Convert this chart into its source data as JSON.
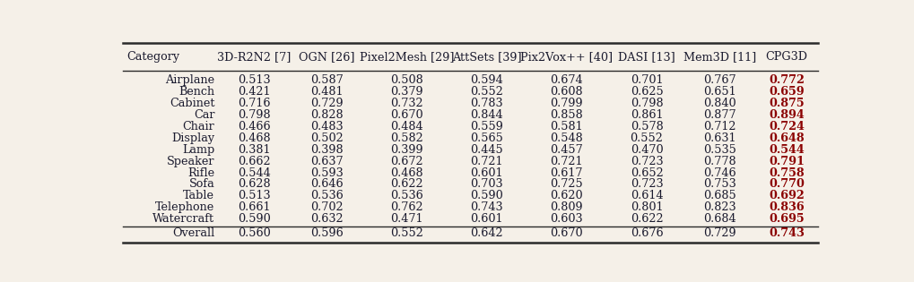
{
  "columns": [
    "Category",
    "3D-R2N2 [7]",
    "OGN [26]",
    "Pixel2Mesh [29]",
    "AttSets [39]",
    "Pix2Vox++ [40]",
    "DASI [13]",
    "Mem3D [11]",
    "CPG3D"
  ],
  "rows": [
    [
      "Airplane",
      "0.513",
      "0.587",
      "0.508",
      "0.594",
      "0.674",
      "0.701",
      "0.767",
      "0.772"
    ],
    [
      "Bench",
      "0.421",
      "0.481",
      "0.379",
      "0.552",
      "0.608",
      "0.625",
      "0.651",
      "0.659"
    ],
    [
      "Cabinet",
      "0.716",
      "0.729",
      "0.732",
      "0.783",
      "0.799",
      "0.798",
      "0.840",
      "0.875"
    ],
    [
      "Car",
      "0.798",
      "0.828",
      "0.670",
      "0.844",
      "0.858",
      "0.861",
      "0.877",
      "0.894"
    ],
    [
      "Chair",
      "0.466",
      "0.483",
      "0.484",
      "0.559",
      "0.581",
      "0.578",
      "0.712",
      "0.724"
    ],
    [
      "Display",
      "0.468",
      "0.502",
      "0.582",
      "0.565",
      "0.548",
      "0.552",
      "0.631",
      "0.648"
    ],
    [
      "Lamp",
      "0.381",
      "0.398",
      "0.399",
      "0.445",
      "0.457",
      "0.470",
      "0.535",
      "0.544"
    ],
    [
      "Speaker",
      "0.662",
      "0.637",
      "0.672",
      "0.721",
      "0.721",
      "0.723",
      "0.778",
      "0.791"
    ],
    [
      "Rifle",
      "0.544",
      "0.593",
      "0.468",
      "0.601",
      "0.617",
      "0.652",
      "0.746",
      "0.758"
    ],
    [
      "Sofa",
      "0.628",
      "0.646",
      "0.622",
      "0.703",
      "0.725",
      "0.723",
      "0.753",
      "0.770"
    ],
    [
      "Table",
      "0.513",
      "0.536",
      "0.536",
      "0.590",
      "0.620",
      "0.614",
      "0.685",
      "0.692"
    ],
    [
      "Telephone",
      "0.661",
      "0.702",
      "0.762",
      "0.743",
      "0.809",
      "0.801",
      "0.823",
      "0.836"
    ],
    [
      "Watercraft",
      "0.590",
      "0.632",
      "0.471",
      "0.601",
      "0.603",
      "0.622",
      "0.684",
      "0.695"
    ]
  ],
  "overall": [
    "Overall",
    "0.560",
    "0.596",
    "0.552",
    "0.642",
    "0.670",
    "0.676",
    "0.729",
    "0.743"
  ],
  "bg_color": "#f5f0e8",
  "text_color": "#1a1a2e",
  "bold_color": "#8B0000",
  "line_color": "#2a2a2a",
  "font_size": 9.2,
  "header_font_size": 9.2,
  "lw_thick": 1.8,
  "lw_thin": 1.0,
  "col_widths_rel": [
    1.3,
    1.0,
    1.0,
    1.2,
    1.0,
    1.2,
    1.0,
    1.0,
    0.85
  ]
}
